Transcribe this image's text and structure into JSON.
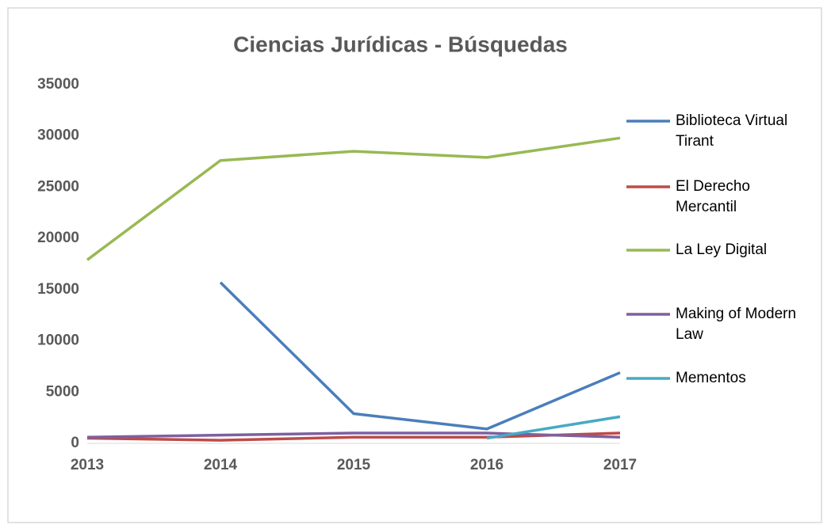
{
  "chart_data": {
    "type": "line",
    "title": "Ciencias Jurídicas - Búsquedas",
    "categories": [
      "2013",
      "2014",
      "2015",
      "2016",
      "2017"
    ],
    "series": [
      {
        "name": "Biblioteca Virtual Tirant",
        "color": "#4a7ebb",
        "values": [
          null,
          15700,
          2900,
          1400,
          6900
        ]
      },
      {
        "name": "El Derecho Mercantil",
        "color": "#be4b48",
        "values": [
          500,
          300,
          600,
          600,
          1000
        ]
      },
      {
        "name": "La Ley Digital",
        "color": "#98b954",
        "values": [
          17900,
          27600,
          28500,
          27900,
          29800
        ]
      },
      {
        "name": "Making of Modern Law",
        "color": "#7d60a0",
        "values": [
          600,
          800,
          1000,
          1000,
          600
        ]
      },
      {
        "name": "Mementos",
        "color": "#46aac5",
        "values": [
          null,
          null,
          null,
          500,
          2600
        ]
      }
    ],
    "ylim": [
      0,
      35000
    ],
    "yticks": [
      0,
      5000,
      10000,
      15000,
      20000,
      25000,
      30000,
      35000
    ],
    "grid": false,
    "legend": "right"
  }
}
